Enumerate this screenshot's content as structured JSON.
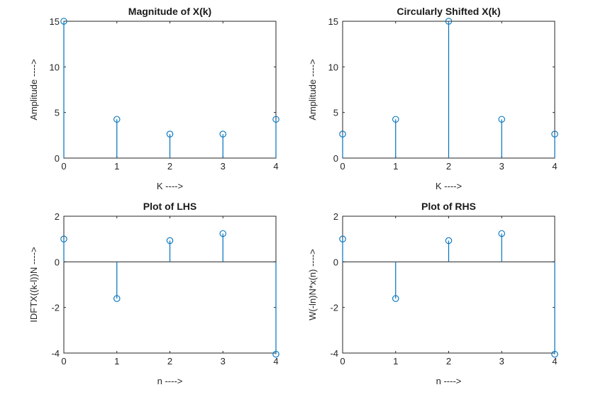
{
  "chart_data": [
    {
      "type": "stem",
      "title": "Magnitude of X(k)",
      "xlabel": "K ---->",
      "ylabel": "Amplitude ---->",
      "x": [
        0,
        1,
        2,
        3,
        4
      ],
      "y": [
        15.0,
        4.25,
        2.63,
        2.63,
        4.25
      ],
      "xlim": [
        0,
        4
      ],
      "ylim": [
        0,
        15
      ],
      "xticks": [
        0,
        1,
        2,
        3,
        4
      ],
      "yticks": [
        0,
        5,
        10,
        15
      ],
      "grid": false,
      "color": "#0072bd"
    },
    {
      "type": "stem",
      "title": "Circularly Shifted X(k)",
      "xlabel": "K ---->",
      "ylabel": "Amplitude ---->",
      "x": [
        0,
        1,
        2,
        3,
        4
      ],
      "y": [
        2.63,
        4.25,
        15.0,
        4.25,
        2.63
      ],
      "xlim": [
        0,
        4
      ],
      "ylim": [
        0,
        15
      ],
      "xticks": [
        0,
        1,
        2,
        3,
        4
      ],
      "yticks": [
        0,
        5,
        10,
        15
      ],
      "grid": false,
      "color": "#0072bd"
    },
    {
      "type": "stem",
      "title": "Plot of LHS",
      "xlabel": "n ---->",
      "ylabel": "IDFTX((k-l))N ---->",
      "x": [
        0,
        1,
        2,
        3,
        4
      ],
      "y": [
        1.0,
        -1.61,
        0.93,
        1.24,
        -4.05
      ],
      "xlim": [
        0,
        4
      ],
      "ylim": [
        -4,
        2
      ],
      "xticks": [
        0,
        1,
        2,
        3,
        4
      ],
      "yticks": [
        -4,
        -2,
        0,
        2
      ],
      "grid": false,
      "color": "#0072bd"
    },
    {
      "type": "stem",
      "title": "Plot of RHS",
      "xlabel": "n ---->",
      "ylabel": "W(-ln)N*x(n) ---->",
      "x": [
        0,
        1,
        2,
        3,
        4
      ],
      "y": [
        1.0,
        -1.61,
        0.93,
        1.24,
        -4.05
      ],
      "xlim": [
        0,
        4
      ],
      "ylim": [
        -4,
        2
      ],
      "xticks": [
        0,
        1,
        2,
        3,
        4
      ],
      "yticks": [
        -4,
        -2,
        0,
        2
      ],
      "grid": false,
      "color": "#0072bd"
    }
  ]
}
